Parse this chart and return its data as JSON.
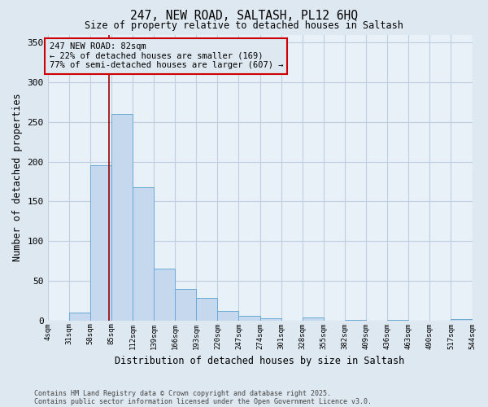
{
  "title1": "247, NEW ROAD, SALTASH, PL12 6HQ",
  "title2": "Size of property relative to detached houses in Saltash",
  "xlabel": "Distribution of detached houses by size in Saltash",
  "ylabel": "Number of detached properties",
  "bar_edges": [
    4,
    31,
    58,
    85,
    112,
    139,
    166,
    193,
    220,
    247,
    274,
    301,
    328,
    355,
    382,
    409,
    436,
    463,
    490,
    517,
    544
  ],
  "bar_heights": [
    0,
    10,
    195,
    260,
    168,
    65,
    40,
    28,
    12,
    6,
    3,
    0,
    4,
    0,
    1,
    0,
    1,
    0,
    0,
    2
  ],
  "bar_color": "#c5d8ee",
  "bar_edge_color": "#6aaad4",
  "grid_color": "#c0cfe0",
  "bg_color": "#dde8f0",
  "plot_bg_color": "#e8f0f8",
  "property_line_x": 82,
  "property_line_color": "#990000",
  "annotation_text": "247 NEW ROAD: 82sqm\n← 22% of detached houses are smaller (169)\n77% of semi-detached houses are larger (607) →",
  "annotation_box_color": "#cc0000",
  "annotation_bg_color": "#dde8f0",
  "ylim": [
    0,
    360
  ],
  "yticks": [
    0,
    50,
    100,
    150,
    200,
    250,
    300,
    350
  ],
  "footnote1": "Contains HM Land Registry data © Crown copyright and database right 2025.",
  "footnote2": "Contains public sector information licensed under the Open Government Licence v3.0."
}
